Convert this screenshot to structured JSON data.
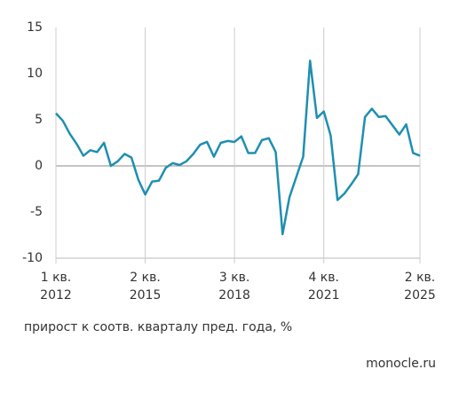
{
  "chart_data": {
    "type": "line",
    "categories": [
      "1 кв.\n2012",
      null,
      null,
      null,
      null,
      null,
      null,
      null,
      null,
      null,
      null,
      null,
      null,
      "2 кв.\n2015",
      null,
      null,
      null,
      null,
      null,
      null,
      null,
      null,
      null,
      null,
      null,
      null,
      "3 кв.\n2018",
      null,
      null,
      null,
      null,
      null,
      null,
      null,
      null,
      null,
      null,
      null,
      null,
      "4 кв.\n2021",
      null,
      null,
      null,
      null,
      null,
      null,
      null,
      null,
      null,
      null,
      null,
      null,
      null,
      "2 кв.\n2025"
    ],
    "series": [
      {
        "name": null,
        "color": "#1f8fb0",
        "values": [
          5.7,
          4.9,
          3.5,
          2.4,
          1.1,
          1.7,
          1.5,
          2.5,
          0.0,
          0.5,
          1.3,
          0.9,
          -1.5,
          -3.1,
          -1.7,
          -1.6,
          -0.2,
          0.3,
          0.1,
          0.5,
          1.3,
          2.3,
          2.6,
          1.0,
          2.5,
          2.7,
          2.6,
          3.2,
          1.4,
          1.4,
          2.8,
          3.0,
          1.5,
          -7.4,
          -3.4,
          -1.2,
          1.0,
          11.4,
          5.2,
          5.9,
          3.3,
          -3.7,
          -3.0,
          -2.0,
          -0.9,
          5.3,
          6.2,
          5.3,
          5.4,
          4.4,
          3.4,
          4.5,
          1.4,
          1.1
        ]
      }
    ],
    "ylim": [
      -10,
      15
    ],
    "yticks": [
      -10,
      -5,
      0,
      5,
      10,
      15
    ],
    "grid": true,
    "caption": "прирост к соотв. кварталу пред. года, %",
    "source": "monocle.ru"
  }
}
